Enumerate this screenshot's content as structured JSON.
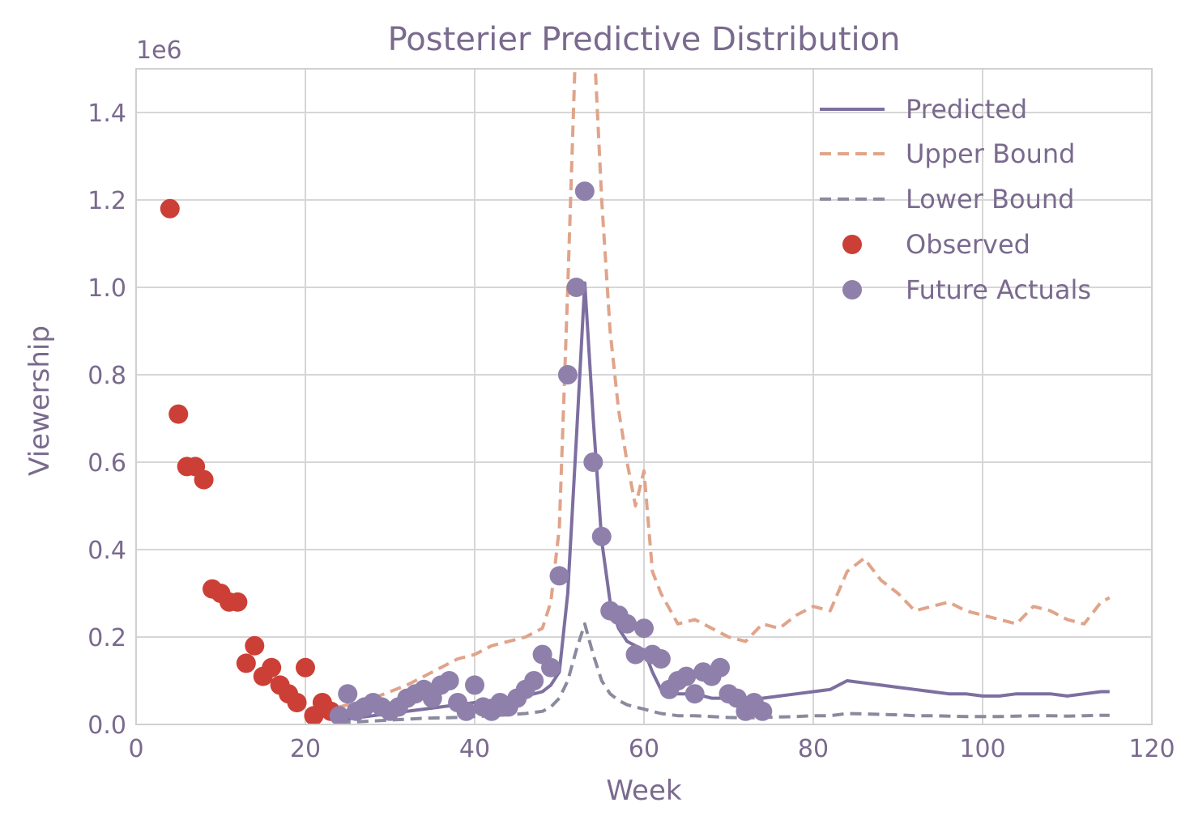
{
  "chart_data": {
    "type": "line",
    "title": "Posterier Predictive Distribution",
    "xlabel": "Week",
    "ylabel": "Viewership",
    "y_offset_text": "1e6",
    "xlim": [
      0,
      120
    ],
    "ylim": [
      0,
      1.5
    ],
    "x_ticks": [
      0,
      20,
      40,
      60,
      80,
      100,
      120
    ],
    "y_ticks": [
      0.0,
      0.2,
      0.4,
      0.6,
      0.8,
      1.0,
      1.2,
      1.4
    ],
    "x_tick_labels": [
      "0",
      "20",
      "40",
      "60",
      "80",
      "100",
      "120"
    ],
    "y_tick_labels": [
      "0.0",
      "0.2",
      "0.4",
      "0.6",
      "0.8",
      "1.0",
      "1.2",
      "1.4"
    ],
    "grid": true,
    "legend_position": "top-right",
    "colors": {
      "predicted": "#7d6fa0",
      "upper": "#e0a48a",
      "lower": "#8a8a9e",
      "observed": "#cc3f36",
      "future": "#8f80ab"
    },
    "series": [
      {
        "name": "Predicted",
        "style": "solid",
        "x": [
          24,
          26,
          28,
          30,
          32,
          34,
          36,
          38,
          40,
          42,
          44,
          46,
          48,
          49,
          50,
          51,
          52,
          53,
          54,
          55,
          56,
          57,
          58,
          59,
          60,
          61,
          62,
          64,
          66,
          68,
          70,
          72,
          74,
          76,
          78,
          80,
          82,
          84,
          86,
          88,
          90,
          92,
          94,
          96,
          98,
          100,
          102,
          104,
          106,
          108,
          110,
          112,
          114,
          115
        ],
        "y": [
          0.01,
          0.015,
          0.02,
          0.025,
          0.03,
          0.035,
          0.04,
          0.045,
          0.05,
          0.055,
          0.06,
          0.065,
          0.075,
          0.09,
          0.12,
          0.3,
          0.65,
          1.01,
          0.7,
          0.42,
          0.28,
          0.22,
          0.19,
          0.18,
          0.17,
          0.12,
          0.08,
          0.07,
          0.07,
          0.06,
          0.06,
          0.05,
          0.06,
          0.065,
          0.07,
          0.075,
          0.08,
          0.1,
          0.095,
          0.09,
          0.085,
          0.08,
          0.075,
          0.07,
          0.07,
          0.065,
          0.065,
          0.07,
          0.07,
          0.07,
          0.065,
          0.07,
          0.075,
          0.075
        ]
      },
      {
        "name": "Upper Bound",
        "style": "dashed",
        "x": [
          24,
          26,
          28,
          30,
          32,
          34,
          36,
          38,
          40,
          42,
          44,
          46,
          48,
          49,
          50,
          51,
          52,
          53,
          54,
          55,
          56,
          57,
          58,
          59,
          60,
          61,
          62,
          64,
          66,
          68,
          70,
          72,
          74,
          76,
          78,
          80,
          82,
          84,
          86,
          88,
          90,
          92,
          94,
          96,
          98,
          100,
          102,
          104,
          106,
          108,
          110,
          112,
          114,
          115
        ],
        "y": [
          0.04,
          0.05,
          0.06,
          0.075,
          0.09,
          0.11,
          0.13,
          0.15,
          0.16,
          0.18,
          0.19,
          0.2,
          0.22,
          0.28,
          0.45,
          1.0,
          1.6,
          1.7,
          1.6,
          1.2,
          0.9,
          0.72,
          0.6,
          0.5,
          0.58,
          0.35,
          0.3,
          0.23,
          0.24,
          0.22,
          0.2,
          0.19,
          0.23,
          0.22,
          0.25,
          0.27,
          0.26,
          0.35,
          0.38,
          0.33,
          0.3,
          0.26,
          0.27,
          0.28,
          0.26,
          0.25,
          0.24,
          0.23,
          0.27,
          0.26,
          0.24,
          0.23,
          0.28,
          0.29
        ]
      },
      {
        "name": "Lower Bound",
        "style": "dashed",
        "x": [
          24,
          26,
          28,
          30,
          32,
          34,
          36,
          38,
          40,
          42,
          44,
          46,
          48,
          49,
          50,
          51,
          52,
          53,
          54,
          55,
          56,
          57,
          58,
          59,
          60,
          61,
          62,
          64,
          66,
          68,
          70,
          72,
          74,
          76,
          78,
          80,
          82,
          84,
          86,
          88,
          90,
          92,
          94,
          96,
          98,
          100,
          102,
          104,
          106,
          108,
          110,
          112,
          114,
          115
        ],
        "y": [
          0.005,
          0.006,
          0.008,
          0.01,
          0.012,
          0.014,
          0.015,
          0.016,
          0.018,
          0.02,
          0.022,
          0.025,
          0.03,
          0.04,
          0.06,
          0.1,
          0.17,
          0.23,
          0.16,
          0.1,
          0.07,
          0.055,
          0.045,
          0.04,
          0.035,
          0.03,
          0.025,
          0.02,
          0.02,
          0.018,
          0.016,
          0.015,
          0.016,
          0.017,
          0.018,
          0.02,
          0.02,
          0.025,
          0.024,
          0.023,
          0.022,
          0.02,
          0.02,
          0.019,
          0.018,
          0.018,
          0.018,
          0.019,
          0.02,
          0.02,
          0.019,
          0.02,
          0.021,
          0.021
        ]
      },
      {
        "name": "Observed",
        "style": "points",
        "x": [
          4,
          5,
          6,
          7,
          8,
          9,
          10,
          11,
          12,
          13,
          14,
          15,
          16,
          17,
          18,
          19,
          20,
          21,
          22,
          23
        ],
        "y": [
          1.18,
          0.71,
          0.59,
          0.59,
          0.56,
          0.31,
          0.3,
          0.28,
          0.28,
          0.14,
          0.18,
          0.11,
          0.13,
          0.09,
          0.07,
          0.05,
          0.13,
          0.02,
          0.05,
          0.03
        ]
      },
      {
        "name": "Future Actuals",
        "style": "points",
        "x": [
          24,
          25,
          26,
          27,
          28,
          29,
          30,
          31,
          32,
          33,
          34,
          35,
          36,
          37,
          38,
          39,
          40,
          41,
          42,
          43,
          44,
          45,
          46,
          47,
          48,
          49,
          50,
          51,
          52,
          53,
          54,
          55,
          56,
          57,
          58,
          59,
          60,
          61,
          62,
          63,
          64,
          65,
          66,
          67,
          68,
          69,
          70,
          71,
          72,
          73,
          74
        ],
        "y": [
          0.02,
          0.07,
          0.03,
          0.04,
          0.05,
          0.04,
          0.03,
          0.04,
          0.06,
          0.07,
          0.08,
          0.06,
          0.09,
          0.1,
          0.05,
          0.03,
          0.09,
          0.04,
          0.03,
          0.05,
          0.04,
          0.06,
          0.08,
          0.1,
          0.16,
          0.13,
          0.34,
          0.8,
          1.0,
          1.22,
          0.6,
          0.43,
          0.26,
          0.25,
          0.23,
          0.16,
          0.22,
          0.16,
          0.15,
          0.08,
          0.1,
          0.11,
          0.07,
          0.12,
          0.11,
          0.13,
          0.07,
          0.06,
          0.03,
          0.05,
          0.03
        ]
      }
    ]
  }
}
